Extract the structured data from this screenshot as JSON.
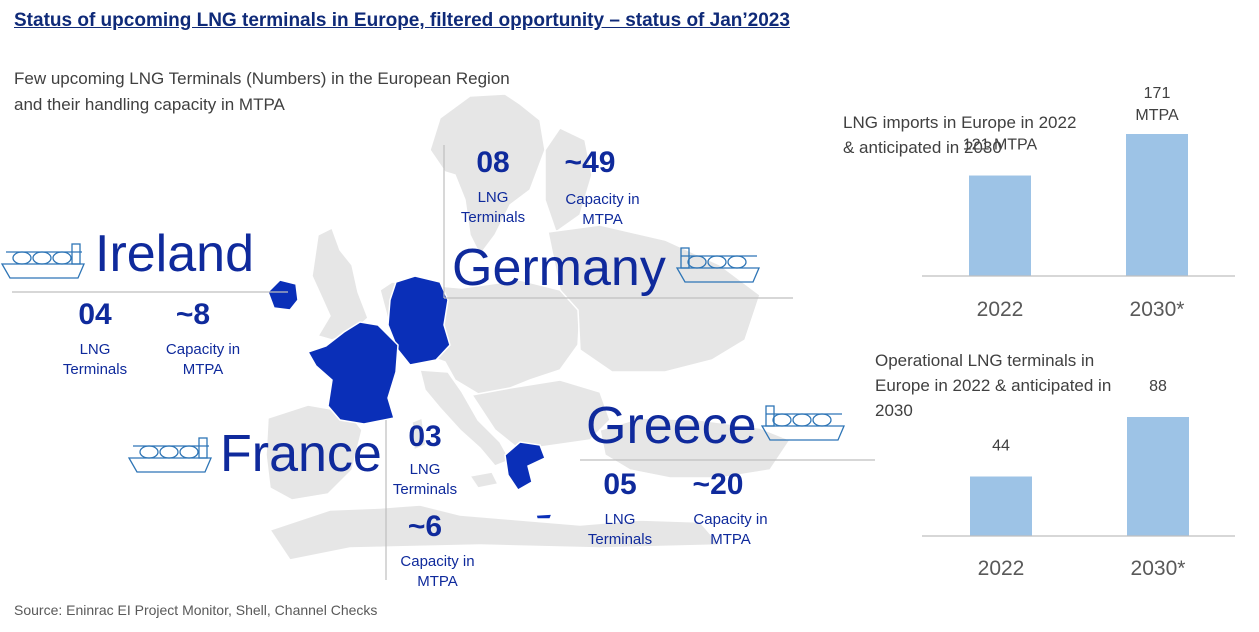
{
  "title": "Status of upcoming LNG terminals in Europe,  filtered opportunity – status of Jan’2023",
  "subtitle": "Few upcoming LNG Terminals (Numbers) in the European Region and their handling capacity in MTPA",
  "source": "Source: Eninrac EI Project Monitor, Shell, Channel Checks",
  "countries": {
    "ireland": {
      "name": "Ireland",
      "terminals": "04",
      "terminals_label": "LNG Terminals",
      "capacity": "~8",
      "capacity_label": "Capacity in MTPA"
    },
    "germany": {
      "name": "Germany",
      "terminals": "08",
      "terminals_label": "LNG Terminals",
      "capacity": "~49",
      "capacity_label": "Capacity in MTPA"
    },
    "france": {
      "name": "France",
      "terminals": "03",
      "terminals_label": "LNG Terminals",
      "capacity": "~6",
      "capacity_label": "Capacity in MTPA"
    },
    "greece": {
      "name": "Greece",
      "terminals": "05",
      "terminals_label": "LNG Terminals",
      "capacity": "~20",
      "capacity_label": "Capacity in MTPA"
    }
  },
  "colors": {
    "title": "#0f2a78",
    "highlight": "#0a2fb8",
    "map_land": "#e6e6e6",
    "bar": "#9dc3e6",
    "ship": "#2e75b6"
  },
  "chart_data": [
    {
      "type": "bar",
      "title": "LNG imports in Europe in 2022 & anticipated in 2030",
      "categories": [
        "2022",
        "2030*"
      ],
      "values": [
        121,
        171
      ],
      "data_labels": [
        "121 MTPA",
        "171 MTPA"
      ],
      "ylim": [
        0,
        171
      ],
      "grid": false,
      "legend": "none"
    },
    {
      "type": "bar",
      "title": "Operational LNG terminals in Europe in 2022 & anticipated in 2030",
      "categories": [
        "2022",
        "2030*"
      ],
      "values": [
        44,
        88
      ],
      "data_labels": [
        "44",
        "88"
      ],
      "ylim": [
        0,
        88
      ],
      "grid": false,
      "legend": "none"
    }
  ]
}
